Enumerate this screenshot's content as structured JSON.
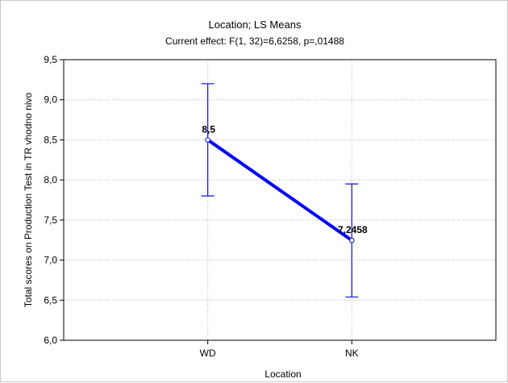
{
  "chart_data": {
    "type": "line",
    "title": "Location; LS Means",
    "subtitle": "Current effect: F(1, 32)=6,6258, p=,01488",
    "xlabel": "Location",
    "ylabel": "Total scores on Production Test in TR vhodno nivo",
    "categories": [
      "WD",
      "NK"
    ],
    "series": [
      {
        "values": [
          8.5,
          7.2458
        ],
        "labels": [
          "8,5",
          "7,2458"
        ],
        "error_low": [
          7.8,
          6.54
        ],
        "error_high": [
          9.2,
          7.95
        ]
      }
    ],
    "ylim": [
      6.0,
      9.5
    ],
    "yticks": [
      6.0,
      6.5,
      7.0,
      7.5,
      8.0,
      8.5,
      9.0,
      9.5
    ],
    "ytick_labels": [
      "6,0",
      "6,5",
      "7,0",
      "7,5",
      "8,0",
      "8,5",
      "9,0",
      "9,5"
    ],
    "grid": true,
    "colors": {
      "line": "#0000ff",
      "errorbar": "#1010cc",
      "grid": "#b4b4b4"
    }
  }
}
